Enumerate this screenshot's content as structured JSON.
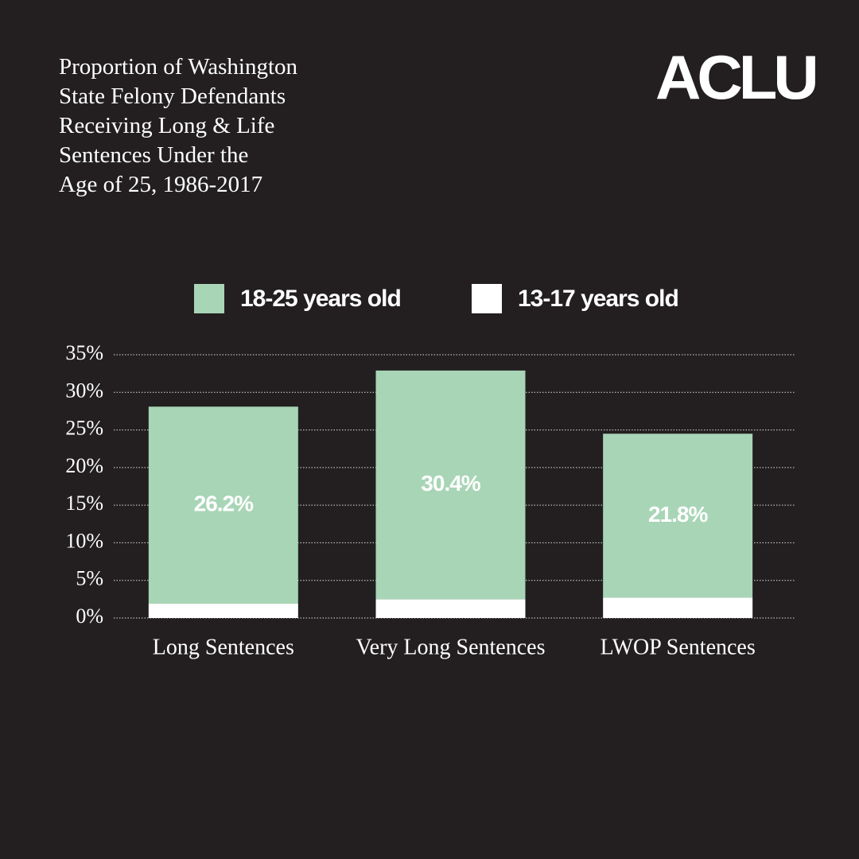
{
  "logo": "ACLU",
  "chart_data": {
    "type": "stacked_bar",
    "title": "Proportion of Washington\nState Felony Defendants\nReceiving Long & Life\nSentences Under the\nAge of 25, 1986-2017",
    "categories": [
      "Long Sentences",
      "Very Long Sentences",
      "LWOP Sentences"
    ],
    "series": [
      {
        "name": "18-25 years old",
        "color": "#a8d5b5",
        "values": [
          26.2,
          30.4,
          21.8
        ],
        "value_labels": [
          "26.2%",
          "30.4%",
          "21.8%"
        ]
      },
      {
        "name": "13-17 years old",
        "color": "#ffffff",
        "values": [
          1.9,
          2.5,
          2.7
        ]
      }
    ],
    "ylim": [
      0,
      35
    ],
    "yticks": [
      {
        "value": 0,
        "label": "0%"
      },
      {
        "value": 5,
        "label": "5%"
      },
      {
        "value": 10,
        "label": "10%"
      },
      {
        "value": 15,
        "label": "15%"
      },
      {
        "value": 20,
        "label": "20%"
      },
      {
        "value": 25,
        "label": "25%"
      },
      {
        "value": 30,
        "label": "30%"
      },
      {
        "value": 35,
        "label": "35%"
      }
    ],
    "grid": true,
    "legend": "top"
  }
}
